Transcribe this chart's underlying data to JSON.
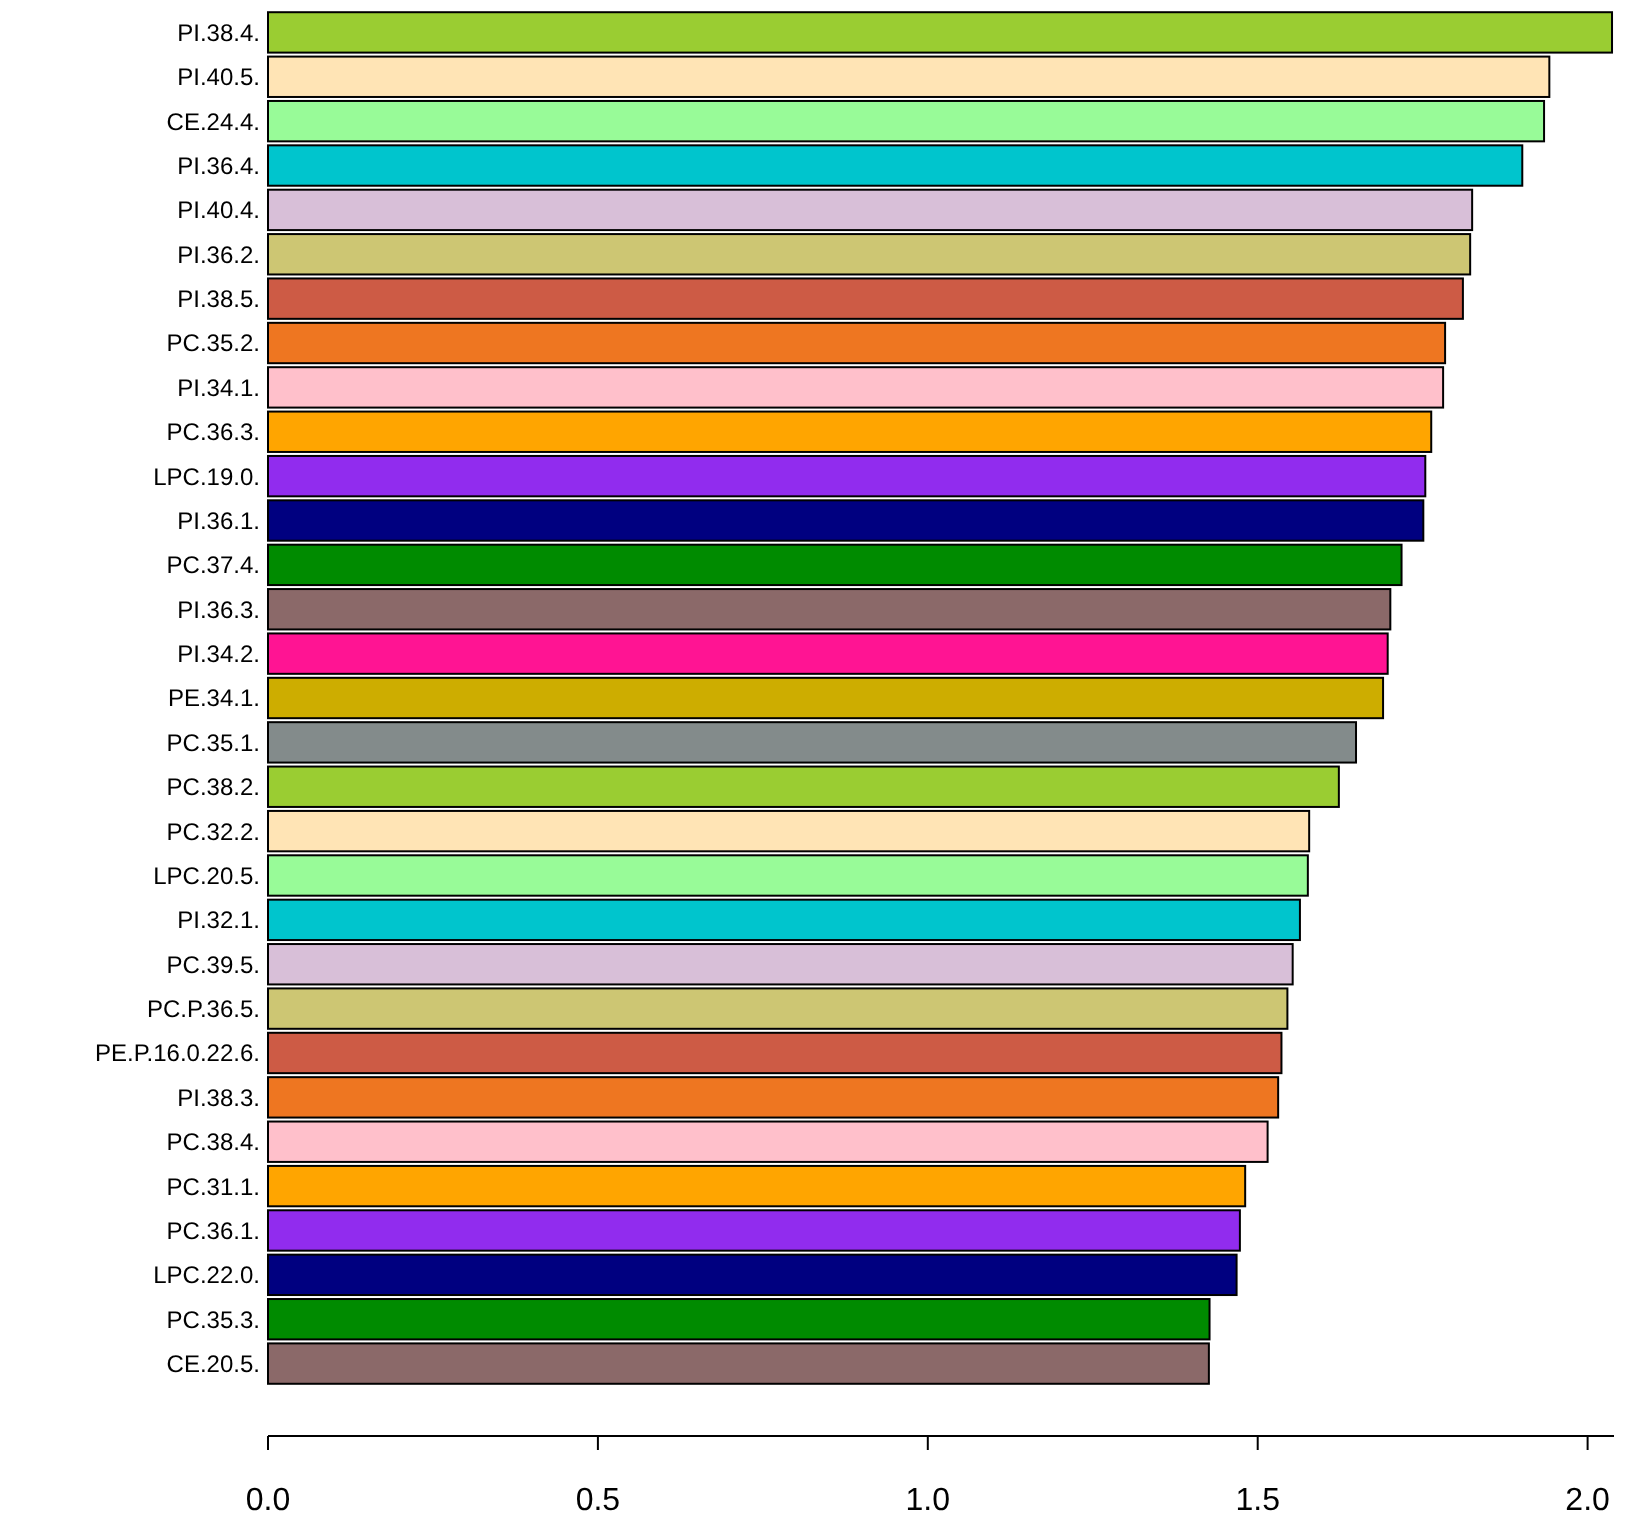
{
  "chart_data": {
    "type": "bar",
    "orientation": "horizontal",
    "categories": [
      "PI.38.4.",
      "PI.40.5.",
      "CE.24.4.",
      "PI.36.4.",
      "PI.40.4.",
      "PI.36.2.",
      "PI.38.5.",
      "PC.35.2.",
      "PI.34.1.",
      "PC.36.3.",
      "LPC.19.0.",
      "PI.36.1.",
      "PC.37.4.",
      "PI.36.3.",
      "PI.34.2.",
      "PE.34.1.",
      "PC.35.1.",
      "PC.38.2.",
      "PC.32.2.",
      "LPC.20.5.",
      "PI.32.1.",
      "PC.39.5.",
      "PC.P.36.5.",
      "PE.P.16.0.22.6.",
      "PI.38.3.",
      "PC.38.4.",
      "PC.31.1.",
      "PC.36.1.",
      "LPC.22.0.",
      "PC.35.3.",
      "CE.20.5."
    ],
    "values": [
      2.037,
      1.942,
      1.934,
      1.901,
      1.825,
      1.822,
      1.811,
      1.784,
      1.781,
      1.763,
      1.754,
      1.751,
      1.718,
      1.701,
      1.697,
      1.69,
      1.649,
      1.623,
      1.578,
      1.576,
      1.564,
      1.553,
      1.545,
      1.536,
      1.531,
      1.515,
      1.481,
      1.473,
      1.468,
      1.427,
      1.426
    ],
    "colors": [
      "#9acd32",
      "#ffe4b5",
      "#98fb98",
      "#00c5cd",
      "#d8bfd8",
      "#cdc673",
      "#cd5b45",
      "#ee7621",
      "#ffc0cb",
      "#ffa500",
      "#912cee",
      "#000080",
      "#008b00",
      "#8b6969",
      "#ff1493",
      "#cdad00",
      "#838b8b",
      "#9acd32",
      "#ffe4b5",
      "#98fb98",
      "#00c5cd",
      "#d8bfd8",
      "#cdc673",
      "#cd5b45",
      "#ee7621",
      "#ffc0cb",
      "#ffa500",
      "#912cee",
      "#000080",
      "#008b00",
      "#8b6969"
    ],
    "xlim": [
      0,
      2.04
    ],
    "xticks": [
      {
        "value": 0,
        "label": "0.0"
      },
      {
        "value": 0.5,
        "label": "0.5"
      },
      {
        "value": 1,
        "label": "1.0"
      },
      {
        "value": 1.5,
        "label": "1.5"
      },
      {
        "value": 2,
        "label": "2.0"
      }
    ],
    "grid": false
  }
}
